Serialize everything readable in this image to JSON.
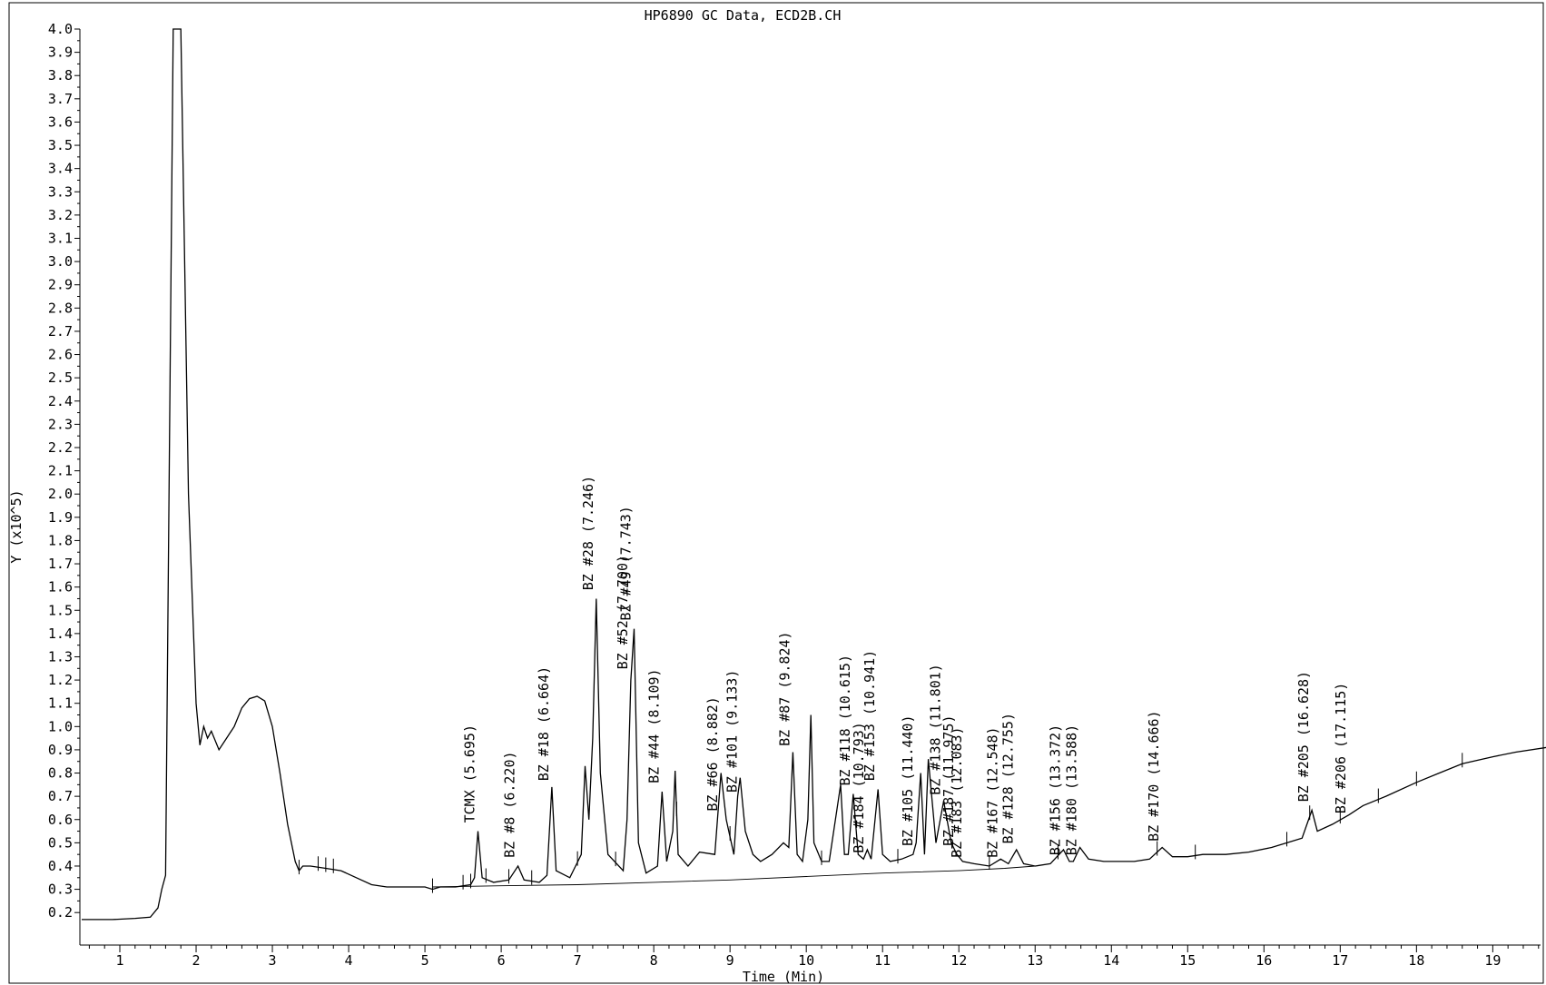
{
  "chart_data": {
    "type": "line",
    "title": "HP6890 GC Data, ECD2B.CH",
    "xlabel": "Time (Min)",
    "ylabel": "Y (x10^5)",
    "xlim": [
      0.5,
      19.7
    ],
    "ylim": [
      0.15,
      4.0
    ],
    "x_ticks": [
      1,
      2,
      3,
      4,
      5,
      6,
      7,
      8,
      9,
      10,
      11,
      12,
      13,
      14,
      15,
      16,
      17,
      18,
      19
    ],
    "y_ticks": [
      "0.2",
      "0.3",
      "0.4",
      "0.5",
      "0.6",
      "0.7",
      "0.8",
      "0.9",
      "1.0",
      "1.1",
      "1.2",
      "1.3",
      "1.4",
      "1.5",
      "1.6",
      "1.7",
      "1.8",
      "1.9",
      "2.0",
      "2.1",
      "2.2",
      "2.3",
      "2.4",
      "2.5",
      "2.6",
      "2.7",
      "2.8",
      "2.9",
      "3.0",
      "3.1",
      "3.2",
      "3.3",
      "3.4",
      "3.5",
      "3.6",
      "3.7",
      "3.8",
      "3.9",
      "4.0"
    ],
    "grid": false,
    "series": [
      {
        "x": [
          0.5,
          0.9,
          1.2,
          1.4,
          1.5,
          1.55,
          1.6,
          1.7,
          1.8,
          1.9,
          2.0,
          2.05,
          2.1,
          2.15,
          2.2,
          2.3,
          2.4,
          2.5,
          2.6,
          2.7,
          2.8,
          2.9,
          3.0,
          3.1,
          3.2,
          3.3,
          3.35,
          3.4,
          3.5,
          3.7,
          3.9,
          4.1,
          4.3,
          4.5,
          4.8,
          5.0,
          5.1,
          5.2,
          5.4,
          5.6,
          5.65,
          5.695,
          5.75,
          5.9,
          6.1,
          6.22,
          6.3,
          6.5,
          6.6,
          6.664,
          6.72,
          6.9,
          7.05,
          7.1,
          7.15,
          7.2,
          7.246,
          7.3,
          7.4,
          7.6,
          7.65,
          7.7,
          7.743,
          7.8,
          7.9,
          8.05,
          8.109,
          8.17,
          8.25,
          8.28,
          8.32,
          8.45,
          8.6,
          8.8,
          8.882,
          8.95,
          9.05,
          9.1,
          9.133,
          9.2,
          9.3,
          9.4,
          9.55,
          9.7,
          9.77,
          9.824,
          9.88,
          9.95,
          10.02,
          10.06,
          10.1,
          10.2,
          10.3,
          10.45,
          10.5,
          10.55,
          10.615,
          10.68,
          10.75,
          10.8,
          10.85,
          10.941,
          11.0,
          11.1,
          11.25,
          11.4,
          11.44,
          11.5,
          11.55,
          11.6,
          11.7,
          11.801,
          11.9,
          11.975,
          12.05,
          12.2,
          12.4,
          12.548,
          12.65,
          12.755,
          12.85,
          13.0,
          13.2,
          13.372,
          13.45,
          13.5,
          13.588,
          13.7,
          13.9,
          14.1,
          14.3,
          14.5,
          14.666,
          14.8,
          15.0,
          15.2,
          15.5,
          15.8,
          16.1,
          16.3,
          16.5,
          16.628,
          16.7,
          16.9,
          17.115,
          17.3,
          17.6,
          18.0,
          18.3,
          18.6,
          19.0,
          19.3,
          19.7
        ],
        "y": [
          0.17,
          0.17,
          0.175,
          0.18,
          0.22,
          0.3,
          0.36,
          4.0,
          4.0,
          2.0,
          1.1,
          0.92,
          1.0,
          0.95,
          0.98,
          0.9,
          0.95,
          1.0,
          1.08,
          1.12,
          1.13,
          1.11,
          1.0,
          0.8,
          0.58,
          0.42,
          0.38,
          0.4,
          0.4,
          0.39,
          0.38,
          0.35,
          0.32,
          0.31,
          0.31,
          0.31,
          0.3,
          0.31,
          0.31,
          0.32,
          0.35,
          0.55,
          0.35,
          0.33,
          0.34,
          0.4,
          0.34,
          0.33,
          0.36,
          0.74,
          0.38,
          0.35,
          0.45,
          0.83,
          0.6,
          0.95,
          1.55,
          0.8,
          0.45,
          0.38,
          0.6,
          1.2,
          1.42,
          0.5,
          0.37,
          0.4,
          0.72,
          0.42,
          0.55,
          0.81,
          0.45,
          0.4,
          0.46,
          0.45,
          0.8,
          0.6,
          0.45,
          0.7,
          0.78,
          0.55,
          0.45,
          0.42,
          0.45,
          0.5,
          0.48,
          0.89,
          0.45,
          0.42,
          0.6,
          1.05,
          0.5,
          0.42,
          0.42,
          0.75,
          0.45,
          0.45,
          0.71,
          0.45,
          0.43,
          0.47,
          0.43,
          0.73,
          0.45,
          0.42,
          0.43,
          0.45,
          0.5,
          0.8,
          0.45,
          0.86,
          0.5,
          0.68,
          0.5,
          0.45,
          0.42,
          0.41,
          0.4,
          0.43,
          0.41,
          0.47,
          0.41,
          0.4,
          0.41,
          0.47,
          0.42,
          0.42,
          0.48,
          0.43,
          0.42,
          0.42,
          0.42,
          0.43,
          0.48,
          0.44,
          0.44,
          0.45,
          0.45,
          0.46,
          0.48,
          0.5,
          0.52,
          0.64,
          0.55,
          0.58,
          0.62,
          0.66,
          0.7,
          0.76,
          0.8,
          0.84,
          0.87,
          0.89,
          0.91
        ]
      }
    ],
    "baseline": {
      "x": [
        5.1,
        6.0,
        7.0,
        8.0,
        9.0,
        10.0,
        11.0,
        12.0,
        12.6,
        13.0
      ],
      "y": [
        0.31,
        0.315,
        0.32,
        0.33,
        0.34,
        0.355,
        0.37,
        0.38,
        0.39,
        0.4
      ]
    },
    "peak_labels": [
      {
        "text": "TCMX (5.695)",
        "x": 5.695,
        "y": 0.57
      },
      {
        "text": "BZ #8 (6.220)",
        "x": 6.22,
        "y": 0.42
      },
      {
        "text": "BZ #18 (6.664)",
        "x": 6.664,
        "y": 0.75
      },
      {
        "text": "BZ #28 (7.246)",
        "x": 7.246,
        "y": 1.57
      },
      {
        "text": "BZ #52 (7.700)",
        "x": 7.7,
        "y": 1.23
      },
      {
        "text": "BZ #49 (7.743)",
        "x": 7.743,
        "y": 1.44
      },
      {
        "text": "BZ #44 (8.109)",
        "x": 8.109,
        "y": 0.74
      },
      {
        "text": "BZ #66 (8.882)",
        "x": 8.882,
        "y": 0.62
      },
      {
        "text": "BZ #101 (9.133)",
        "x": 9.133,
        "y": 0.7
      },
      {
        "text": "BZ #87 (9.824)",
        "x": 9.824,
        "y": 0.9
      },
      {
        "text": "BZ #118 (10.615)",
        "x": 10.615,
        "y": 0.73
      },
      {
        "text": "BZ #184 (10.793)",
        "x": 10.793,
        "y": 0.44
      },
      {
        "text": "BZ #153 (10.941)",
        "x": 10.941,
        "y": 0.75
      },
      {
        "text": "BZ #105 (11.440)",
        "x": 11.44,
        "y": 0.47
      },
      {
        "text": "BZ #138 (11.801)",
        "x": 11.801,
        "y": 0.69
      },
      {
        "text": "BZ #187 (11.975)",
        "x": 11.975,
        "y": 0.47
      },
      {
        "text": "BZ #183 (12.083)",
        "x": 12.083,
        "y": 0.42
      },
      {
        "text": "BZ #167 (12.548)",
        "x": 12.548,
        "y": 0.42
      },
      {
        "text": "BZ #128 (12.755)",
        "x": 12.755,
        "y": 0.48
      },
      {
        "text": "BZ #156 (13.372)",
        "x": 13.372,
        "y": 0.43
      },
      {
        "text": "BZ #180 (13.588)",
        "x": 13.588,
        "y": 0.43
      },
      {
        "text": "BZ #170 (14.666)",
        "x": 14.666,
        "y": 0.49
      },
      {
        "text": "BZ #205 (16.628)",
        "x": 16.628,
        "y": 0.66
      },
      {
        "text": "BZ #206 (17.115)",
        "x": 17.115,
        "y": 0.61
      }
    ]
  }
}
